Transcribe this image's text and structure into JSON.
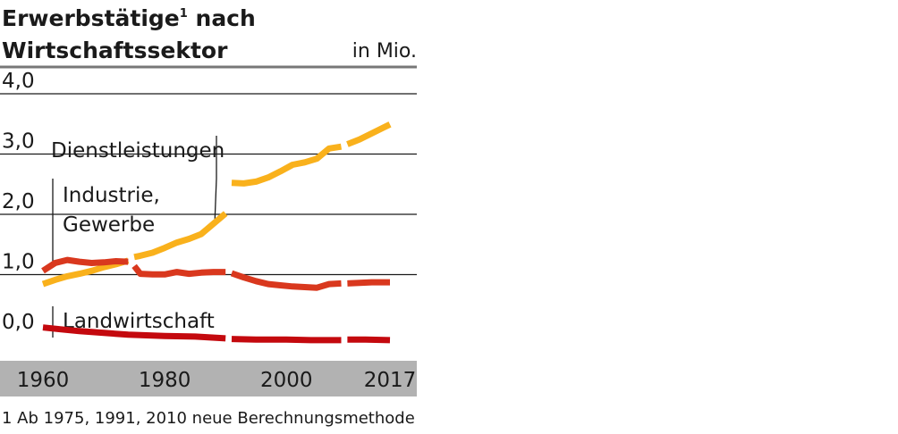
{
  "title": {
    "line1": "Erwerbstätige",
    "sup": "1",
    "line1_suffix": " nach",
    "line2": "Wirtschaftssektor"
  },
  "unit": "in Mio.",
  "footnote": "1 Ab 1975, 1991, 2010 neue Berechnungsmethode",
  "colors": {
    "services": "#f9b11c",
    "industry": "#d9381e",
    "agriculture": "#c4090e",
    "axis_band": "#b2b2b2",
    "gridline": "#1a1a1a"
  },
  "chart_data": {
    "type": "line",
    "title": "Erwerbstätige nach Wirtschaftssektor",
    "ylabel": "in Mio.",
    "xlabel": "",
    "ylim": [
      0,
      4.0
    ],
    "xlim": [
      1960,
      2017
    ],
    "y_ticks": [
      "0,0",
      "1,0",
      "2,0",
      "3,0",
      "4,0"
    ],
    "y_tick_values": [
      0,
      1,
      2,
      3,
      4
    ],
    "x_ticks": [
      "1960",
      "1980",
      "2000",
      "2017"
    ],
    "x_tick_values": [
      1960,
      1980,
      2000,
      2017
    ],
    "grid": true,
    "series": [
      {
        "name": "Dienstleistungen",
        "color_key": "services",
        "segments": [
          [
            [
              1960,
              1.05
            ],
            [
              1962,
              1.12
            ],
            [
              1964,
              1.18
            ],
            [
              1966,
              1.22
            ],
            [
              1968,
              1.27
            ],
            [
              1970,
              1.33
            ],
            [
              1972,
              1.38
            ],
            [
              1974,
              1.44
            ]
          ],
          [
            [
              1975,
              1.5
            ],
            [
              1976,
              1.52
            ],
            [
              1978,
              1.57
            ],
            [
              1980,
              1.65
            ],
            [
              1982,
              1.74
            ],
            [
              1984,
              1.8
            ],
            [
              1986,
              1.88
            ],
            [
              1988,
              2.05
            ],
            [
              1990,
              2.22
            ]
          ],
          [
            [
              1991,
              2.73
            ],
            [
              1993,
              2.72
            ],
            [
              1995,
              2.75
            ],
            [
              1997,
              2.82
            ],
            [
              1999,
              2.92
            ],
            [
              2001,
              3.03
            ],
            [
              2003,
              3.07
            ],
            [
              2005,
              3.13
            ],
            [
              2007,
              3.3
            ],
            [
              2009,
              3.33
            ]
          ],
          [
            [
              2010,
              3.37
            ],
            [
              2012,
              3.45
            ],
            [
              2014,
              3.55
            ],
            [
              2016,
              3.65
            ],
            [
              2017,
              3.7
            ]
          ]
        ]
      },
      {
        "name": "Industrie, Gewerbe",
        "color_key": "industry",
        "segments": [
          [
            [
              1960,
              1.27
            ],
            [
              1962,
              1.4
            ],
            [
              1964,
              1.45
            ],
            [
              1966,
              1.42
            ],
            [
              1968,
              1.4
            ],
            [
              1970,
              1.41
            ],
            [
              1972,
              1.43
            ],
            [
              1974,
              1.42
            ]
          ],
          [
            [
              1975,
              1.35
            ],
            [
              1976,
              1.22
            ],
            [
              1978,
              1.21
            ],
            [
              1980,
              1.21
            ],
            [
              1982,
              1.25
            ],
            [
              1984,
              1.22
            ],
            [
              1986,
              1.24
            ],
            [
              1988,
              1.25
            ],
            [
              1990,
              1.25
            ]
          ],
          [
            [
              1991,
              1.23
            ],
            [
              1993,
              1.16
            ],
            [
              1995,
              1.1
            ],
            [
              1997,
              1.05
            ],
            [
              1999,
              1.03
            ],
            [
              2001,
              1.01
            ],
            [
              2003,
              1.0
            ],
            [
              2005,
              0.99
            ],
            [
              2007,
              1.05
            ],
            [
              2009,
              1.06
            ]
          ],
          [
            [
              2010,
              1.06
            ],
            [
              2012,
              1.07
            ],
            [
              2014,
              1.08
            ],
            [
              2016,
              1.08
            ],
            [
              2017,
              1.08
            ]
          ]
        ]
      },
      {
        "name": "Landwirtschaft",
        "color_key": "agriculture",
        "segments": [
          [
            [
              1960,
              0.33
            ],
            [
              1963,
              0.3
            ],
            [
              1966,
              0.27
            ],
            [
              1970,
              0.24
            ],
            [
              1974,
              0.21
            ],
            [
              1980,
              0.19
            ],
            [
              1985,
              0.18
            ],
            [
              1990,
              0.15
            ]
          ],
          [
            [
              1991,
              0.14
            ],
            [
              1995,
              0.13
            ],
            [
              2000,
              0.13
            ],
            [
              2004,
              0.12
            ],
            [
              2007,
              0.12
            ],
            [
              2009,
              0.12
            ]
          ],
          [
            [
              2010,
              0.13
            ],
            [
              2013,
              0.13
            ],
            [
              2017,
              0.12
            ]
          ]
        ]
      }
    ],
    "annotations": [
      {
        "text": "Dienstleistungen",
        "series": "Dienstleistungen"
      },
      {
        "text": "Industrie,",
        "series": "Industrie, Gewerbe"
      },
      {
        "text": "Gewerbe",
        "series": "Industrie, Gewerbe"
      },
      {
        "text": "Landwirtschaft",
        "series": "Landwirtschaft"
      }
    ]
  }
}
